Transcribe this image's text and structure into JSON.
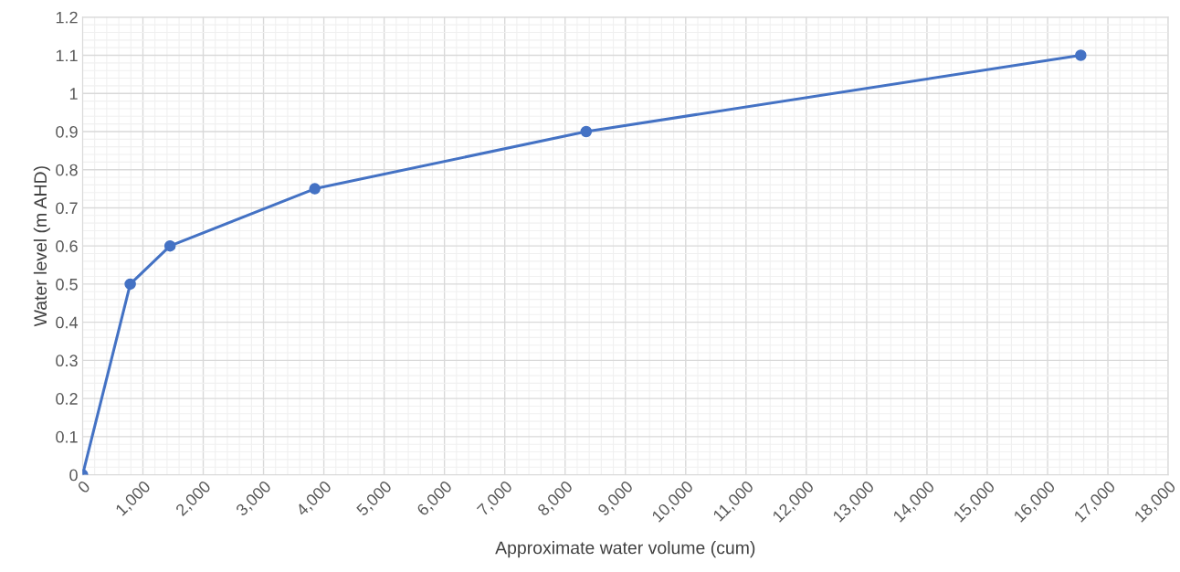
{
  "chart_data": {
    "type": "line",
    "xlabel": "Approximate water volume (cum)",
    "ylabel": "Water level (m AHD)",
    "x": [
      0,
      790,
      1450,
      3850,
      8350,
      16550
    ],
    "series": [
      {
        "color": "#4472c4",
        "values": [
          0,
          0.5,
          0.6,
          0.75,
          0.9,
          1.1
        ]
      }
    ],
    "xlim": [
      0,
      18000
    ],
    "xticks": [
      {
        "value": 0,
        "label": "0"
      },
      {
        "value": 1000,
        "label": "1,000"
      },
      {
        "value": 2000,
        "label": "2,000"
      },
      {
        "value": 3000,
        "label": "3,000"
      },
      {
        "value": 4000,
        "label": "4,000"
      },
      {
        "value": 5000,
        "label": "5,000"
      },
      {
        "value": 6000,
        "label": "6,000"
      },
      {
        "value": 7000,
        "label": "7,000"
      },
      {
        "value": 8000,
        "label": "8,000"
      },
      {
        "value": 9000,
        "label": "9,000"
      },
      {
        "value": 10000,
        "label": "10,000"
      },
      {
        "value": 11000,
        "label": "11,000"
      },
      {
        "value": 12000,
        "label": "12,000"
      },
      {
        "value": 13000,
        "label": "13,000"
      },
      {
        "value": 14000,
        "label": "14,000"
      },
      {
        "value": 15000,
        "label": "15,000"
      },
      {
        "value": 16000,
        "label": "16,000"
      },
      {
        "value": 17000,
        "label": "17,000"
      },
      {
        "value": 18000,
        "label": "18,000"
      }
    ],
    "ylim": [
      0,
      1.2
    ],
    "yticks": [
      0,
      0.1,
      0.2,
      0.3,
      0.4,
      0.5,
      0.6,
      0.7,
      0.8,
      0.9,
      1,
      1.1,
      1.2
    ],
    "grid": true,
    "marker": "circle",
    "line_style": "solid",
    "legend": false
  }
}
